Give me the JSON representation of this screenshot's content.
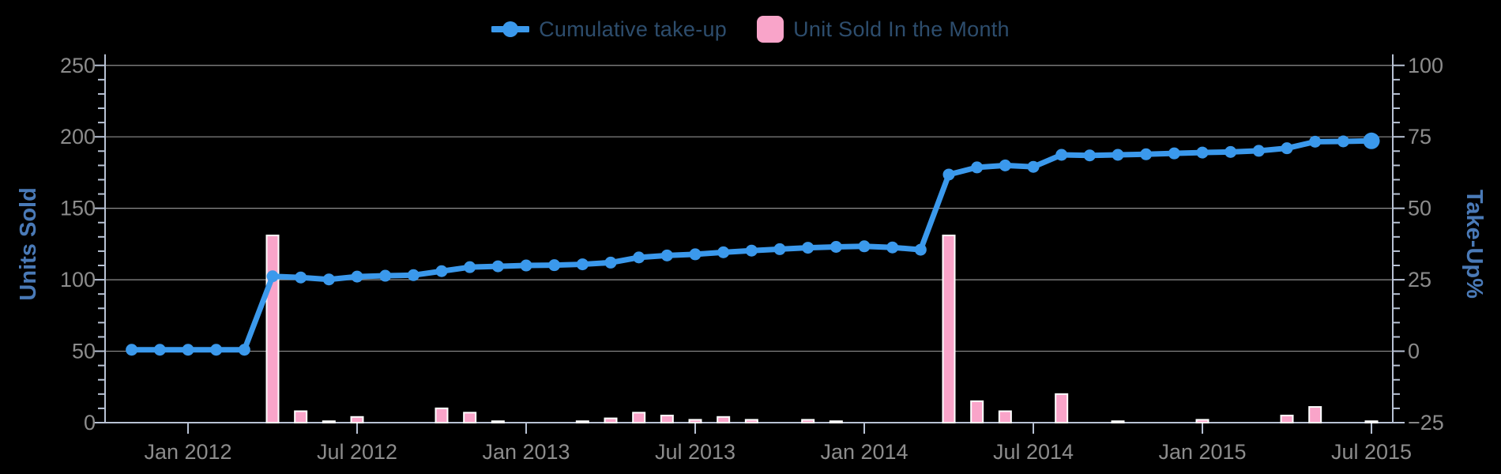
{
  "legend": {
    "items": [
      {
        "label": "Cumulative take-up",
        "marker": "line-dot-icon"
      },
      {
        "label": "Unit Sold In the Month",
        "marker": "bar-swatch-icon"
      }
    ]
  },
  "colors": {
    "background": "#000000",
    "grid": "#8f8f8f",
    "axis_line": "#b8c2d4",
    "tick_label": "#8c8c8c",
    "axis_title": "#4a7ab7",
    "legend_text": "#2d4d6d",
    "line": "#3b99ec",
    "bar": "#f9a4c9",
    "bar_border": "#ffffff"
  },
  "chart_data": {
    "type": [
      "line",
      "bar"
    ],
    "title": "",
    "grid": true,
    "legend_position": "top-center",
    "x": [
      "Nov 2011",
      "Dec 2011",
      "Jan 2012",
      "Feb 2012",
      "Mar 2012",
      "Apr 2012",
      "May 2012",
      "Jun 2012",
      "Jul 2012",
      "Aug 2012",
      "Sep 2012",
      "Oct 2012",
      "Nov 2012",
      "Dec 2012",
      "Jan 2013",
      "Feb 2013",
      "Mar 2013",
      "Apr 2013",
      "May 2013",
      "Jun 2013",
      "Jul 2013",
      "Aug 2013",
      "Sep 2013",
      "Oct 2013",
      "Nov 2013",
      "Dec 2013",
      "Jan 2014",
      "Feb 2014",
      "Mar 2014",
      "Apr 2014",
      "May 2014",
      "Jun 2014",
      "Jul 2014",
      "Aug 2014",
      "Sep 2014",
      "Oct 2014",
      "Nov 2014",
      "Dec 2014",
      "Jan 2015",
      "Feb 2015",
      "Mar 2015",
      "Apr 2015",
      "May 2015",
      "Jun 2015",
      "Jul 2015"
    ],
    "x_axis": {
      "tick_labels": [
        "Jan 2012",
        "Jul 2012",
        "Jan 2013",
        "Jul 2013",
        "Jan 2014",
        "Jul 2014",
        "Jan 2015",
        "Jul 2015"
      ],
      "tick_month_indices": [
        2,
        8,
        14,
        20,
        26,
        32,
        38,
        44
      ]
    },
    "left_axis": {
      "title": "Units Sold",
      "range": [
        0,
        250
      ],
      "ticks": [
        250,
        200,
        150,
        100,
        50,
        0
      ],
      "minor_step": 10
    },
    "right_axis": {
      "title": "Take-Up%",
      "range": [
        -25,
        100
      ],
      "ticks": [
        100,
        75,
        50,
        25,
        0,
        -25
      ],
      "minor_step": 5
    },
    "series": [
      {
        "name": "Cumulative take-up",
        "type": "line",
        "axis": "right",
        "color": "#3b99ec",
        "values": [
          0.5,
          0.5,
          0.5,
          0.5,
          0.5,
          26.2,
          25.8,
          25.1,
          26.1,
          26.4,
          26.6,
          28.0,
          29.4,
          29.7,
          30.0,
          30.1,
          30.4,
          31.0,
          32.8,
          33.5,
          33.9,
          34.6,
          35.2,
          35.7,
          36.2,
          36.5,
          36.7,
          36.3,
          35.5,
          61.8,
          64.3,
          65.0,
          64.5,
          68.7,
          68.5,
          68.7,
          68.9,
          69.2,
          69.5,
          69.7,
          70.1,
          71.0,
          73.3,
          73.4,
          73.6
        ]
      },
      {
        "name": "Unit Sold In the Month",
        "type": "bar",
        "axis": "left",
        "color": "#f9a4c9",
        "border": "#ffffff",
        "values": [
          0,
          0,
          0,
          0,
          0,
          131,
          8,
          1,
          4,
          0,
          0,
          10,
          7,
          1,
          0,
          0,
          1,
          3,
          7,
          5,
          2,
          4,
          2,
          0,
          2,
          1,
          0,
          0,
          0,
          131,
          15,
          8,
          0,
          20,
          0,
          1,
          0,
          0,
          2,
          0,
          0,
          5,
          11,
          0,
          1
        ]
      }
    ]
  }
}
